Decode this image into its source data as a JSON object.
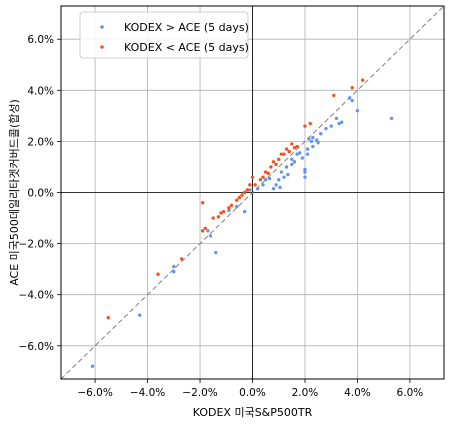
{
  "chart_data": {
    "type": "scatter",
    "xlabel": "KODEX 미국S&P500TR",
    "ylabel": "ACE 미국500데일리타겟커버드콜(합성)",
    "xlim": [
      -7.3,
      7.3
    ],
    "ylim": [
      -7.3,
      7.3
    ],
    "x_ticks": [
      {
        "value": -6,
        "label": "−6.0%"
      },
      {
        "value": -4,
        "label": "−4.0%"
      },
      {
        "value": -2,
        "label": "−2.0%"
      },
      {
        "value": 0,
        "label": "0.0%"
      },
      {
        "value": 2,
        "label": "2.0%"
      },
      {
        "value": 4,
        "label": "4.0%"
      },
      {
        "value": 6,
        "label": "6.0%"
      }
    ],
    "y_ticks": [
      {
        "value": -6,
        "label": "−6.0%"
      },
      {
        "value": -4,
        "label": "−4.0%"
      },
      {
        "value": -2,
        "label": "−2.0%"
      },
      {
        "value": 0,
        "label": "0.0%"
      },
      {
        "value": 2,
        "label": "2.0%"
      },
      {
        "value": 4,
        "label": "4.0%"
      },
      {
        "value": 6,
        "label": "6.0%"
      }
    ],
    "grid": true,
    "diagonal_reference": "y = x (dashed gray)",
    "zero_lines": true,
    "legend_position": "top-left",
    "series": [
      {
        "name": "KODEX > ACE (5 days)",
        "color": "#6495ED",
        "points": [
          [
            -6.1,
            -6.8
          ],
          [
            -4.3,
            -4.8
          ],
          [
            -3.0,
            -3.1
          ],
          [
            -3.0,
            -2.9
          ],
          [
            -1.4,
            -2.35
          ],
          [
            -1.6,
            -1.7
          ],
          [
            -1.7,
            -1.5
          ],
          [
            -0.9,
            -0.7
          ],
          [
            -0.6,
            -0.55
          ],
          [
            -0.3,
            -0.75
          ],
          [
            -0.1,
            0.1
          ],
          [
            0.2,
            0.15
          ],
          [
            0.4,
            0.3
          ],
          [
            0.5,
            0.5
          ],
          [
            0.8,
            0.15
          ],
          [
            0.9,
            0.3
          ],
          [
            1.0,
            0.5
          ],
          [
            1.1,
            0.8
          ],
          [
            1.2,
            0.6
          ],
          [
            1.3,
            1.0
          ],
          [
            1.35,
            0.7
          ],
          [
            1.5,
            1.3
          ],
          [
            1.5,
            1.1
          ],
          [
            1.6,
            1.2
          ],
          [
            1.7,
            1.5
          ],
          [
            1.8,
            1.55
          ],
          [
            1.9,
            1.35
          ],
          [
            2.0,
            0.6
          ],
          [
            2.0,
            0.8
          ],
          [
            2.0,
            0.9
          ],
          [
            2.1,
            1.5
          ],
          [
            2.1,
            1.7
          ],
          [
            2.15,
            2.1
          ],
          [
            2.25,
            2.0
          ],
          [
            2.3,
            1.8
          ],
          [
            2.3,
            2.15
          ],
          [
            2.45,
            2.05
          ],
          [
            2.5,
            1.95
          ],
          [
            2.6,
            2.3
          ],
          [
            2.8,
            2.5
          ],
          [
            3.0,
            2.6
          ],
          [
            3.2,
            2.9
          ],
          [
            3.3,
            2.7
          ],
          [
            3.4,
            2.75
          ],
          [
            3.7,
            3.7
          ],
          [
            3.8,
            3.6
          ],
          [
            4.0,
            3.2
          ],
          [
            5.3,
            2.9
          ],
          [
            1.05,
            0.2
          ],
          [
            0.65,
            0.55
          ]
        ]
      },
      {
        "name": "KODEX < ACE (5 days)",
        "color": "#F4511E",
        "points": [
          [
            -5.5,
            -4.9
          ],
          [
            -3.6,
            -3.2
          ],
          [
            -2.7,
            -2.6
          ],
          [
            -1.8,
            -1.4
          ],
          [
            -1.9,
            -1.5
          ],
          [
            -1.5,
            -1.0
          ],
          [
            -1.3,
            -0.95
          ],
          [
            -1.2,
            -0.8
          ],
          [
            -1.1,
            -0.75
          ],
          [
            -0.9,
            -0.6
          ],
          [
            -0.8,
            -0.5
          ],
          [
            -0.6,
            -0.3
          ],
          [
            -0.5,
            -0.2
          ],
          [
            -0.4,
            -0.1
          ],
          [
            -0.3,
            0.0
          ],
          [
            -0.2,
            0.1
          ],
          [
            -0.1,
            0.3
          ],
          [
            0.0,
            0.6
          ],
          [
            0.1,
            0.3
          ],
          [
            0.3,
            0.5
          ],
          [
            0.4,
            0.6
          ],
          [
            0.5,
            0.8
          ],
          [
            0.6,
            0.75
          ],
          [
            0.7,
            1.0
          ],
          [
            0.8,
            1.2
          ],
          [
            0.9,
            1.1
          ],
          [
            1.0,
            1.3
          ],
          [
            1.1,
            1.5
          ],
          [
            1.2,
            1.5
          ],
          [
            1.3,
            1.7
          ],
          [
            1.4,
            1.6
          ],
          [
            1.5,
            1.9
          ],
          [
            1.6,
            1.75
          ],
          [
            1.7,
            1.8
          ],
          [
            2.0,
            2.6
          ],
          [
            2.2,
            2.7
          ],
          [
            3.1,
            3.8
          ],
          [
            3.8,
            4.1
          ],
          [
            4.2,
            4.4
          ],
          [
            -1.9,
            -0.4
          ]
        ]
      }
    ]
  }
}
